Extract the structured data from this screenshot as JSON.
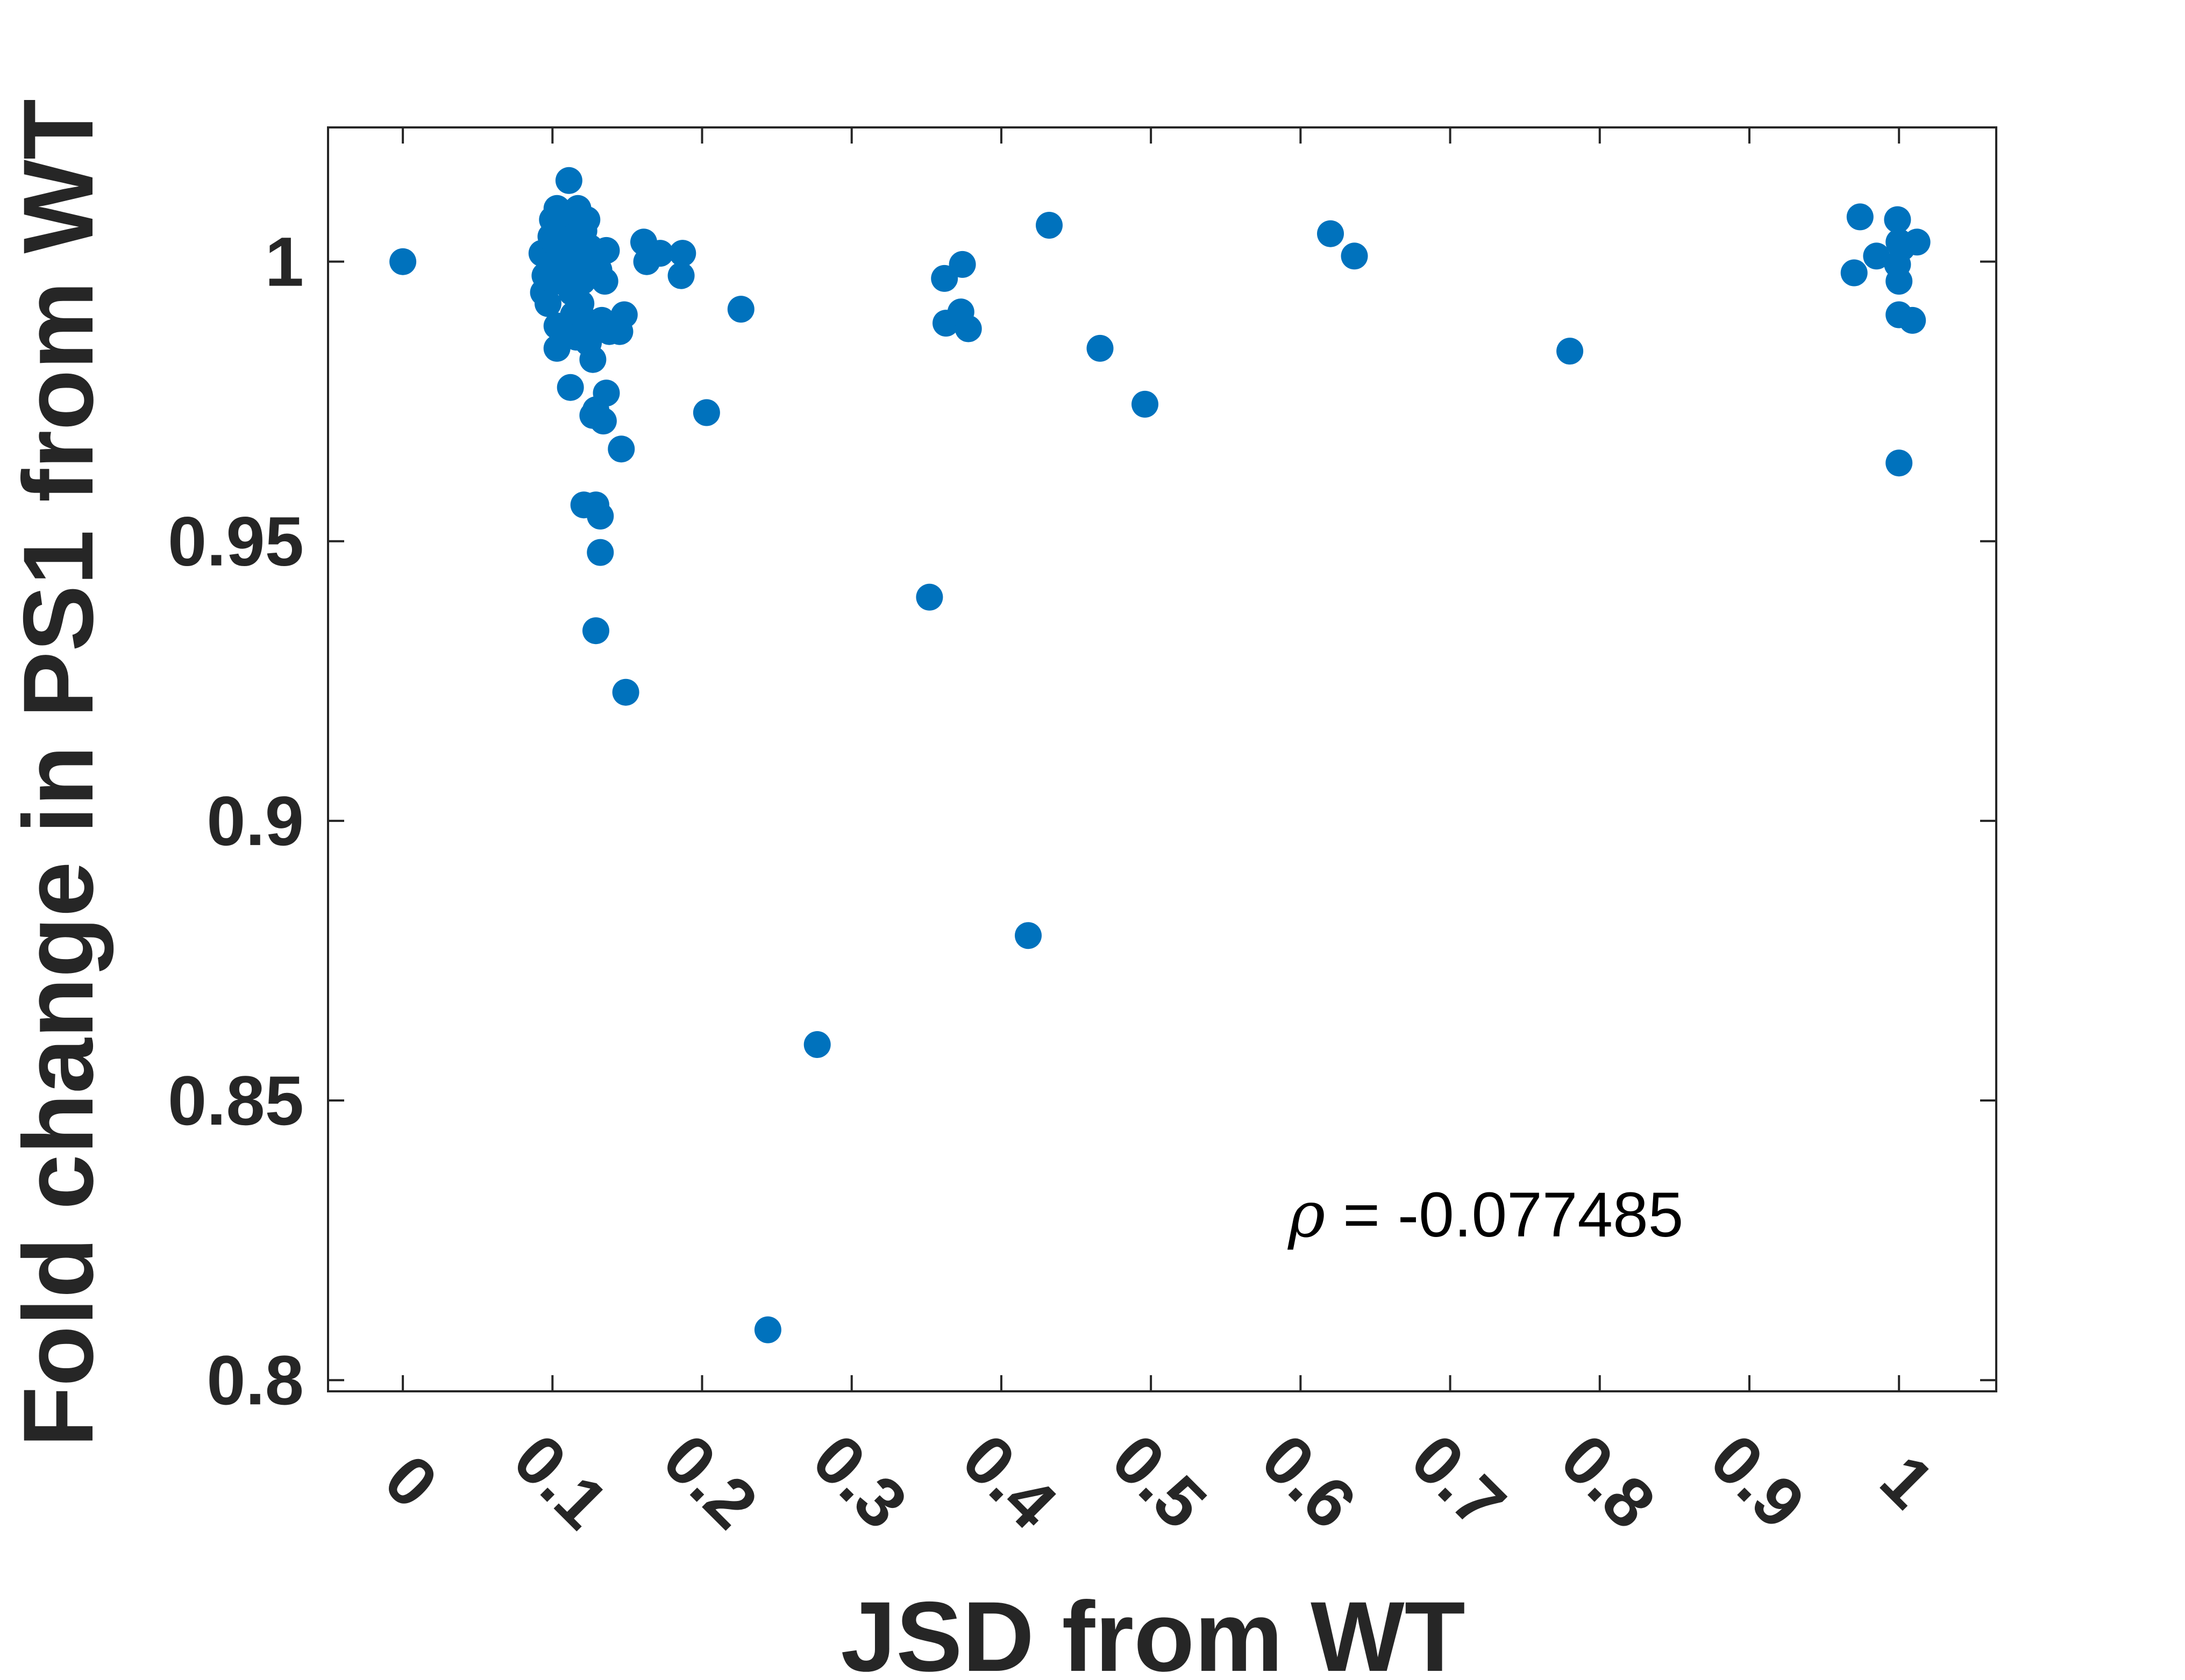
{
  "chart_data": {
    "type": "scatter",
    "title": "",
    "xlabel": "JSD from WT",
    "ylabel": "Fold change in PS1 from WT",
    "xlim": [
      -0.05,
      1.065
    ],
    "ylim": [
      0.798,
      1.024
    ],
    "xticks": [
      0,
      0.1,
      0.2,
      0.3,
      0.4,
      0.5,
      0.6,
      0.7,
      0.8,
      0.9,
      1
    ],
    "xtick_labels": [
      "0",
      "0.1",
      "0.2",
      "0.3",
      "0.4",
      "0.5",
      "0.6",
      "0.7",
      "0.8",
      "0.9",
      "1"
    ],
    "yticks": [
      0.8,
      0.85,
      0.9,
      0.95,
      1
    ],
    "ytick_labels": [
      "0.8",
      "0.85",
      "0.9",
      "0.95",
      "1"
    ],
    "xtick_rotation_deg": 45,
    "grid": false,
    "box": true,
    "marker_color": "#0072BD",
    "annotation": {
      "symbol": "ρ",
      "text": " = -0.077485"
    },
    "points": [
      {
        "x": 0.0,
        "y": 1.0
      },
      {
        "x": 0.093,
        "y": 1.0015
      },
      {
        "x": 0.095,
        "y": 0.9975
      },
      {
        "x": 0.094,
        "y": 0.9945
      },
      {
        "x": 0.097,
        "y": 0.9925
      },
      {
        "x": 0.099,
        "y": 1.0045
      },
      {
        "x": 0.1,
        "y": 1.0075
      },
      {
        "x": 0.101,
        "y": 1.0035
      },
      {
        "x": 0.103,
        "y": 1.0095
      },
      {
        "x": 0.104,
        "y": 1.0005
      },
      {
        "x": 0.105,
        "y": 0.9965
      },
      {
        "x": 0.103,
        "y": 0.9885
      },
      {
        "x": 0.103,
        "y": 0.9845
      },
      {
        "x": 0.107,
        "y": 1.0065
      },
      {
        "x": 0.109,
        "y": 1.0025
      },
      {
        "x": 0.11,
        "y": 0.9985
      },
      {
        "x": 0.111,
        "y": 1.0145
      },
      {
        "x": 0.112,
        "y": 1.0085
      },
      {
        "x": 0.113,
        "y": 0.9945
      },
      {
        "x": 0.114,
        "y": 0.9905
      },
      {
        "x": 0.115,
        "y": 1.0045
      },
      {
        "x": 0.116,
        "y": 0.9865
      },
      {
        "x": 0.117,
        "y": 1.0095
      },
      {
        "x": 0.118,
        "y": 1.0005
      },
      {
        "x": 0.119,
        "y": 0.9925
      },
      {
        "x": 0.12,
        "y": 0.9965
      },
      {
        "x": 0.121,
        "y": 1.0055
      },
      {
        "x": 0.122,
        "y": 0.9895
      },
      {
        "x": 0.123,
        "y": 1.0075
      },
      {
        "x": 0.124,
        "y": 0.9855
      },
      {
        "x": 0.125,
        "y": 1.0025
      },
      {
        "x": 0.127,
        "y": 0.9825
      },
      {
        "x": 0.129,
        "y": 0.9885
      },
      {
        "x": 0.131,
        "y": 0.9985
      },
      {
        "x": 0.133,
        "y": 0.9895
      },
      {
        "x": 0.135,
        "y": 0.9965
      },
      {
        "x": 0.136,
        "y": 1.002
      },
      {
        "x": 0.138,
        "y": 0.9875
      },
      {
        "x": 0.112,
        "y": 0.9775
      },
      {
        "x": 0.127,
        "y": 0.9725
      },
      {
        "x": 0.129,
        "y": 0.9735
      },
      {
        "x": 0.134,
        "y": 0.9715
      },
      {
        "x": 0.136,
        "y": 0.9765
      },
      {
        "x": 0.146,
        "y": 0.9665
      },
      {
        "x": 0.121,
        "y": 0.9565
      },
      {
        "x": 0.129,
        "y": 0.9565
      },
      {
        "x": 0.132,
        "y": 0.9545
      },
      {
        "x": 0.132,
        "y": 0.948
      },
      {
        "x": 0.129,
        "y": 0.934
      },
      {
        "x": 0.149,
        "y": 0.923
      },
      {
        "x": 0.145,
        "y": 0.9875
      },
      {
        "x": 0.148,
        "y": 0.9905
      },
      {
        "x": 0.161,
        "y": 1.0035
      },
      {
        "x": 0.163,
        "y": 1.0
      },
      {
        "x": 0.172,
        "y": 1.0015
      },
      {
        "x": 0.187,
        "y": 1.0015
      },
      {
        "x": 0.186,
        "y": 0.9975
      },
      {
        "x": 0.203,
        "y": 0.973
      },
      {
        "x": 0.226,
        "y": 0.9915
      },
      {
        "x": 0.244,
        "y": 0.809
      },
      {
        "x": 0.277,
        "y": 0.86
      },
      {
        "x": 0.352,
        "y": 0.94
      },
      {
        "x": 0.362,
        "y": 0.997
      },
      {
        "x": 0.363,
        "y": 0.989
      },
      {
        "x": 0.374,
        "y": 0.9995
      },
      {
        "x": 0.373,
        "y": 0.991
      },
      {
        "x": 0.378,
        "y": 0.988
      },
      {
        "x": 0.418,
        "y": 0.8795
      },
      {
        "x": 0.432,
        "y": 1.0065
      },
      {
        "x": 0.466,
        "y": 0.9845
      },
      {
        "x": 0.496,
        "y": 0.9745
      },
      {
        "x": 0.62,
        "y": 1.005
      },
      {
        "x": 0.636,
        "y": 1.001
      },
      {
        "x": 0.78,
        "y": 0.984
      },
      {
        "x": 0.97,
        "y": 0.998
      },
      {
        "x": 0.974,
        "y": 1.008
      },
      {
        "x": 0.985,
        "y": 1.001
      },
      {
        "x": 0.999,
        "y": 1.0075
      },
      {
        "x": 1.0,
        "y": 1.0035
      },
      {
        "x": 0.999,
        "y": 0.9995
      },
      {
        "x": 1.0,
        "y": 0.9965
      },
      {
        "x": 1.0,
        "y": 0.9905
      },
      {
        "x": 1.002,
        "y": 1.0025
      },
      {
        "x": 1.009,
        "y": 0.9895
      },
      {
        "x": 1.012,
        "y": 1.0035
      },
      {
        "x": 1.0,
        "y": 0.964
      }
    ]
  }
}
